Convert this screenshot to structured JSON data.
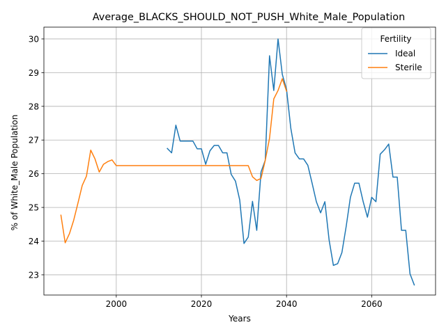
{
  "chart_data": {
    "type": "line",
    "title": "Average_BLACKS_SHOULD_NOT_PUSH_White_Male_Population",
    "xlabel": "Years",
    "ylabel": "% of White_Male Population",
    "xlim": [
      1983,
      2075
    ],
    "ylim": [
      22.4,
      30.35
    ],
    "xticks": [
      2000,
      2020,
      2040,
      2060
    ],
    "yticks": [
      23,
      24,
      25,
      26,
      27,
      28,
      29,
      30
    ],
    "grid": true,
    "legend": {
      "title": "Fertility",
      "placement": "top-right"
    },
    "series": [
      {
        "name": "Ideal",
        "color": "#1f77b4",
        "points": [
          [
            2012,
            26.75
          ],
          [
            2013,
            26.62
          ],
          [
            2014,
            27.44
          ],
          [
            2015,
            26.97
          ],
          [
            2016,
            26.97
          ],
          [
            2017,
            26.97
          ],
          [
            2018,
            26.97
          ],
          [
            2019,
            26.74
          ],
          [
            2020,
            26.74
          ],
          [
            2021,
            26.28
          ],
          [
            2022,
            26.68
          ],
          [
            2023,
            26.84
          ],
          [
            2024,
            26.84
          ],
          [
            2025,
            26.62
          ],
          [
            2026,
            26.62
          ],
          [
            2027,
            25.98
          ],
          [
            2028,
            25.78
          ],
          [
            2029,
            25.22
          ],
          [
            2030,
            23.93
          ],
          [
            2031,
            24.12
          ],
          [
            2032,
            25.18
          ],
          [
            2033,
            24.32
          ],
          [
            2034,
            26.05
          ],
          [
            2035,
            26.4
          ],
          [
            2036,
            29.5
          ],
          [
            2037,
            28.47
          ],
          [
            2038,
            30.0
          ],
          [
            2039,
            28.95
          ],
          [
            2040,
            28.5
          ],
          [
            2041,
            27.35
          ],
          [
            2042,
            26.62
          ],
          [
            2043,
            26.44
          ],
          [
            2044,
            26.44
          ],
          [
            2045,
            26.25
          ],
          [
            2046,
            25.72
          ],
          [
            2047,
            25.17
          ],
          [
            2048,
            24.84
          ],
          [
            2049,
            25.17
          ],
          [
            2050,
            24.03
          ],
          [
            2051,
            23.28
          ],
          [
            2052,
            23.33
          ],
          [
            2053,
            23.66
          ],
          [
            2054,
            24.43
          ],
          [
            2055,
            25.3
          ],
          [
            2056,
            25.72
          ],
          [
            2057,
            25.72
          ],
          [
            2058,
            25.17
          ],
          [
            2059,
            24.71
          ],
          [
            2060,
            25.3
          ],
          [
            2061,
            25.17
          ],
          [
            2062,
            26.58
          ],
          [
            2063,
            26.71
          ],
          [
            2064,
            26.88
          ],
          [
            2065,
            25.9
          ],
          [
            2066,
            25.9
          ],
          [
            2067,
            24.32
          ],
          [
            2068,
            24.32
          ],
          [
            2069,
            23.03
          ],
          [
            2070,
            22.7
          ]
        ]
      },
      {
        "name": "Sterile",
        "color": "#ff7f0e",
        "points": [
          [
            1987,
            24.77
          ],
          [
            1988,
            23.95
          ],
          [
            1989,
            24.22
          ],
          [
            1990,
            24.62
          ],
          [
            1991,
            25.13
          ],
          [
            1992,
            25.65
          ],
          [
            1993,
            25.93
          ],
          [
            1994,
            26.7
          ],
          [
            1995,
            26.44
          ],
          [
            1996,
            26.05
          ],
          [
            1997,
            26.28
          ],
          [
            1998,
            26.36
          ],
          [
            1999,
            26.41
          ],
          [
            2000,
            26.24
          ],
          [
            2005,
            26.24
          ],
          [
            2010,
            26.24
          ],
          [
            2015,
            26.24
          ],
          [
            2020,
            26.24
          ],
          [
            2025,
            26.24
          ],
          [
            2030,
            26.24
          ],
          [
            2031,
            26.24
          ],
          [
            2032,
            25.91
          ],
          [
            2033,
            25.8
          ],
          [
            2034,
            25.86
          ],
          [
            2035,
            26.4
          ],
          [
            2036,
            27.05
          ],
          [
            2037,
            28.22
          ],
          [
            2038,
            28.47
          ],
          [
            2039,
            28.82
          ],
          [
            2040,
            28.45
          ]
        ]
      }
    ]
  }
}
